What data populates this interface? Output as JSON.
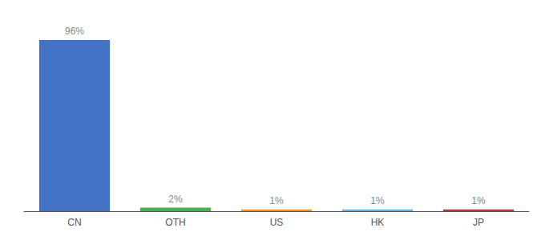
{
  "chart_data": {
    "type": "bar",
    "categories": [
      "CN",
      "OTH",
      "US",
      "HK",
      "JP"
    ],
    "values": [
      96,
      2,
      1,
      1,
      1
    ],
    "colors": [
      "#4472c4",
      "#4caf50",
      "#ff9800",
      "#64b5f6",
      "#c0392b"
    ],
    "value_labels": [
      "96%",
      "2%",
      "1%",
      "1%",
      "1%"
    ],
    "data_labels": true,
    "ylim": [
      0,
      105
    ],
    "grid": false,
    "tick_labels": "x"
  }
}
